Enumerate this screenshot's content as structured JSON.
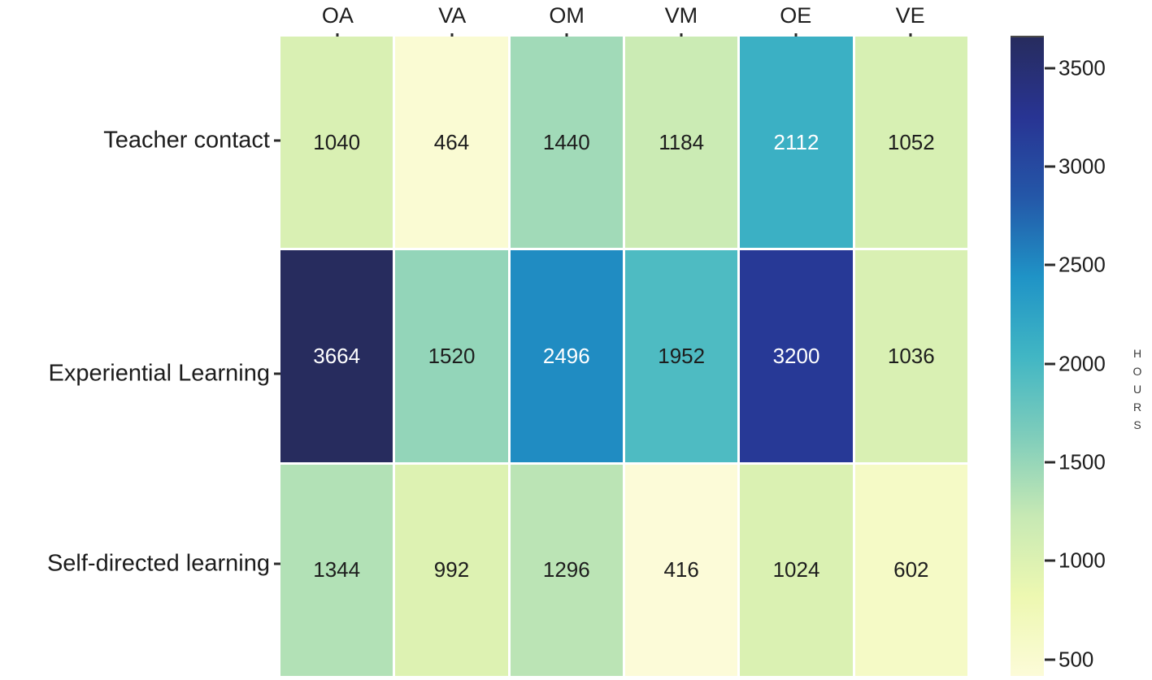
{
  "figure": {
    "background": "#ffffff"
  },
  "chart_data": {
    "type": "heatmap",
    "title": "",
    "xlabel": "",
    "ylabel": "",
    "categories": [
      "OA",
      "VA",
      "OM",
      "VM",
      "OE",
      "VE"
    ],
    "rows": [
      "Teacher contact",
      "Experiential Learning",
      "Self-directed learning"
    ],
    "series": [
      {
        "name": "Teacher contact",
        "values": [
          1040,
          464,
          1440,
          1184,
          2112,
          1052
        ]
      },
      {
        "name": "Experiential Learning",
        "values": [
          3664,
          1520,
          2496,
          1952,
          3200,
          1036
        ]
      },
      {
        "name": "Self-directed learning",
        "values": [
          1344,
          992,
          1296,
          416,
          1024,
          602
        ]
      }
    ],
    "colorbar": {
      "label": "HOURS",
      "tick_labels": [
        3500,
        3000,
        2500,
        2000,
        1500,
        1000,
        500
      ],
      "vmin": 416,
      "vmax": 3664
    },
    "colormap": {
      "name": "YlGnBu",
      "stops": [
        "#fcfbd8",
        "#edf8b1",
        "#c7e9b4",
        "#7fcdbb",
        "#41b6c4",
        "#1f93c6",
        "#2457a8",
        "#283493",
        "#272c5e"
      ]
    },
    "text_colors": {
      "light_cell": "#1d1d1d",
      "dark_cell": "#ffffff"
    },
    "tick_color": "#2b2b2b",
    "label_color": "#1c1c1c",
    "grid_gap_color": "#ffffff",
    "legend_position": "right",
    "grid": false
  }
}
